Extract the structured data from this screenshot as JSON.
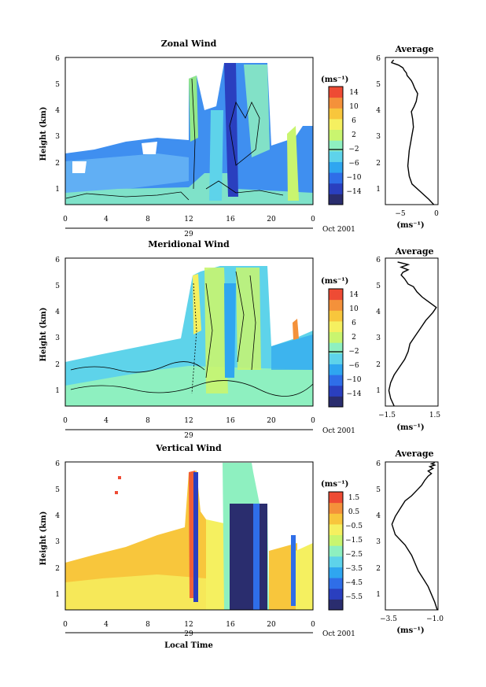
{
  "panels": [
    {
      "title": "Zonal Wind"
    },
    {
      "title": "Meridional Wind"
    },
    {
      "title": "Vertical Wind"
    }
  ],
  "xaxis": {
    "ticks": [
      "0",
      "4",
      "8",
      "12",
      "16",
      "20",
      "0"
    ],
    "day_label": "29",
    "month_label": "Oct 2001",
    "xlabel": "Local Time"
  },
  "yaxis": {
    "ticks": [
      "1",
      "2",
      "3",
      "4",
      "5",
      "6"
    ],
    "ylabel": "Height (km)"
  },
  "colorbars": [
    {
      "unit": "(ms⁻¹)",
      "ticks": [
        "14",
        "10",
        "6",
        "2",
        "−2",
        "−6",
        "−10",
        "−14"
      ],
      "zero_line": true
    },
    {
      "unit": "(ms⁻¹)",
      "ticks": [
        "14",
        "10",
        "6",
        "2",
        "−2",
        "−6",
        "−10",
        "−14"
      ],
      "zero_line": true
    },
    {
      "unit": "(ms⁻¹)",
      "ticks": [
        "1.5",
        "0.5",
        "−0.5",
        "−1.5",
        "−2.5",
        "−3.5",
        "−4.5",
        "−5.5"
      ],
      "zero_line": false
    }
  ],
  "averages": [
    {
      "title": "Average",
      "xticks": [
        "−5",
        "0"
      ],
      "xunit": "(ms⁻¹)"
    },
    {
      "title": "Average",
      "xticks": [
        "−1.5",
        "1.5"
      ],
      "xunit": "(ms⁻¹)"
    },
    {
      "title": "Average",
      "xticks": [
        "−3.5",
        "−1.0"
      ],
      "xunit": "(ms⁻¹)"
    }
  ],
  "colors": {
    "scale": [
      "#2a2d6e",
      "#2a3fbf",
      "#2f6ee8",
      "#2fa6f0",
      "#5ed3ea",
      "#8ef0c0",
      "#c9f56f",
      "#f5f060",
      "#f8c63c",
      "#f4913a",
      "#ee4b34"
    ]
  },
  "chart_data": [
    {
      "type": "line",
      "title": "Average",
      "xlabel": "(ms⁻¹)",
      "ylabel": "Height (km)",
      "xlim": [
        -7,
        0.5
      ],
      "ylim": [
        0.3,
        6
      ],
      "x": [
        -0.1,
        -0.8,
        -2,
        -3.2,
        -3.6,
        -3.8,
        -3.7,
        -3.6,
        -3.4,
        -3.2,
        -3.0,
        -3.1,
        -3.3,
        -2.9,
        -2.6,
        -2.4,
        -2.8,
        -3.1,
        -3.3,
        -3.6,
        -3.9,
        -4.0,
        -4.3,
        -4.5,
        -4.8,
        -5.1,
        -5.6,
        -6.1,
        -6.0,
        -5.8
      ],
      "y": [
        0.3,
        0.5,
        0.8,
        1.1,
        1.4,
        1.8,
        2.1,
        2.4,
        2.7,
        3.0,
        3.3,
        3.6,
        3.9,
        4.1,
        4.3,
        4.6,
        4.8,
        5.0,
        5.1,
        5.2,
        5.3,
        5.4,
        5.5,
        5.6,
        5.65,
        5.7,
        5.75,
        5.8,
        5.85,
        5.9
      ]
    },
    {
      "type": "line",
      "title": "Average",
      "xlabel": "(ms⁻¹)",
      "ylabel": "Height (km)",
      "xlim": [
        -1.5,
        1.5
      ],
      "ylim": [
        0.3,
        6
      ],
      "x": [
        -1.0,
        -1.2,
        -1.3,
        -1.2,
        -1.0,
        -0.7,
        -0.4,
        -0.2,
        -0.1,
        0.2,
        0.5,
        0.8,
        1.2,
        1.4,
        1.0,
        0.6,
        0.3,
        0.1,
        -0.2,
        -0.4,
        -0.6,
        -0.5,
        -0.2,
        -0.6,
        -0.2,
        -0.8
      ],
      "y": [
        0.3,
        0.6,
        0.9,
        1.2,
        1.5,
        1.8,
        2.1,
        2.4,
        2.7,
        3.0,
        3.3,
        3.6,
        3.9,
        4.1,
        4.3,
        4.5,
        4.7,
        4.9,
        5.0,
        5.2,
        5.35,
        5.45,
        5.55,
        5.65,
        5.75,
        5.85
      ]
    },
    {
      "type": "line",
      "title": "Average",
      "xlabel": "(ms⁻¹)",
      "ylabel": "Height (km)",
      "xlim": [
        -4.2,
        -1.0
      ],
      "ylim": [
        0.3,
        6
      ],
      "x": [
        -1.05,
        -1.2,
        -1.4,
        -1.6,
        -1.9,
        -2.2,
        -2.4,
        -2.6,
        -3.0,
        -3.6,
        -3.8,
        -3.6,
        -3.3,
        -3.0,
        -2.6,
        -2.3,
        -2.0,
        -1.8,
        -1.6,
        -1.4,
        -1.6,
        -1.3,
        -1.5,
        -1.2,
        -1.4,
        -1.2
      ],
      "y": [
        0.3,
        0.6,
        0.9,
        1.2,
        1.5,
        1.8,
        2.1,
        2.4,
        2.8,
        3.2,
        3.6,
        3.9,
        4.2,
        4.5,
        4.7,
        4.9,
        5.1,
        5.3,
        5.45,
        5.55,
        5.65,
        5.75,
        5.82,
        5.88,
        5.93,
        5.97
      ]
    }
  ]
}
